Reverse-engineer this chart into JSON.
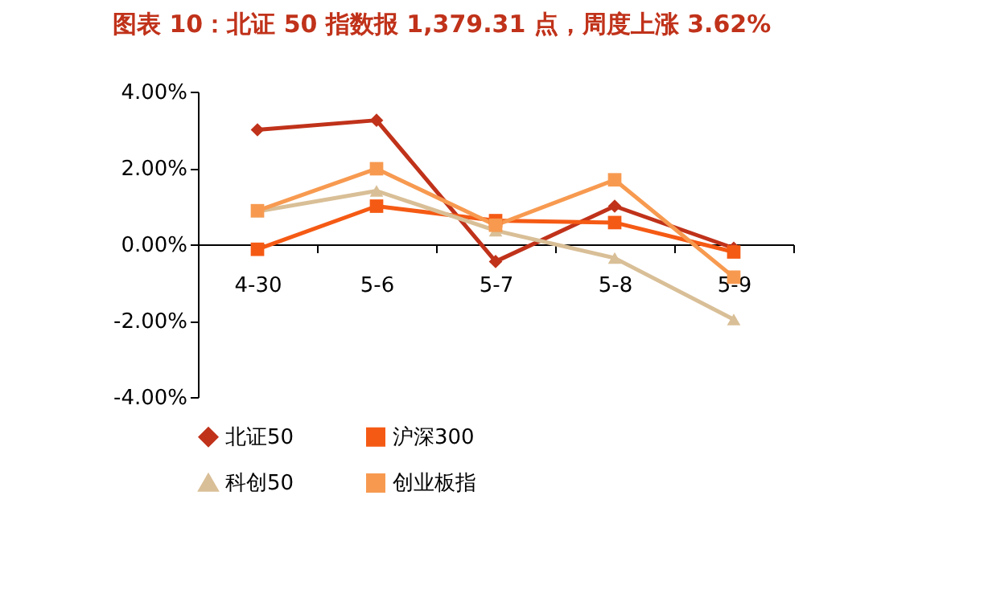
{
  "chart_data": {
    "type": "line",
    "title": "图表 10：北证 50 指数报 1,379.31 点，周度上涨 3.62%",
    "categories": [
      "4-30",
      "5-6",
      "5-7",
      "5-8",
      "5-9"
    ],
    "series": [
      {
        "name": "北证50",
        "color": "#c0321a",
        "marker": "diamond",
        "values": [
          3.0,
          3.25,
          -0.45,
          1.0,
          -0.1
        ]
      },
      {
        "name": "沪深300",
        "color": "#f55a14",
        "marker": "square",
        "values": [
          -0.13,
          1.0,
          0.62,
          0.57,
          -0.2
        ]
      },
      {
        "name": "科创50",
        "color": "#d9bf97",
        "marker": "triangle",
        "values": [
          0.86,
          1.4,
          0.36,
          -0.36,
          -1.97
        ]
      },
      {
        "name": "创业板指",
        "color": "#f79a50",
        "marker": "square",
        "values": [
          0.88,
          1.98,
          0.5,
          1.69,
          -0.86
        ]
      }
    ],
    "ylim": [
      -4,
      4
    ],
    "yticks": [
      {
        "value": -4,
        "label": "-4.00%"
      },
      {
        "value": -2,
        "label": "-2.00%"
      },
      {
        "value": 0,
        "label": "0.00%"
      },
      {
        "value": 2,
        "label": "2.00%"
      },
      {
        "value": 4,
        "label": "4.00%"
      }
    ],
    "grid": false,
    "legend": "bottom",
    "line_style": "solid"
  }
}
